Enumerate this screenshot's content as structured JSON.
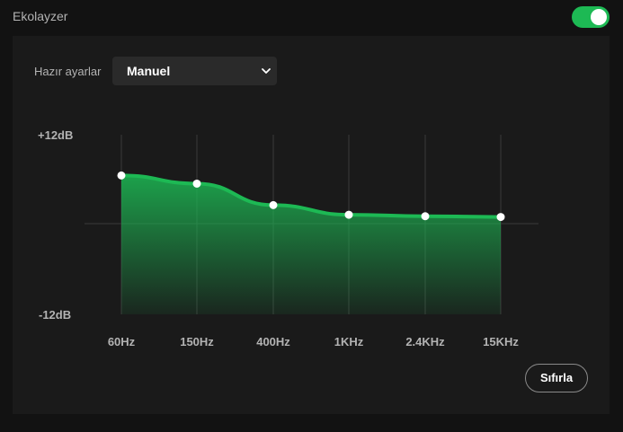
{
  "header": {
    "title": "Ekolayzer",
    "toggle": {
      "state": "on",
      "accent_color": "#1db954"
    }
  },
  "preset": {
    "label": "Hazır ayarlar",
    "selected": "Manuel",
    "icon": "chevron-down-icon"
  },
  "chart_data": {
    "type": "area",
    "db_max_label": "+12dB",
    "db_min_label": "-12dB",
    "ylim": [
      -12,
      12
    ],
    "categories": [
      "60Hz",
      "150Hz",
      "400Hz",
      "1KHz",
      "2.4KHz",
      "15KHz"
    ],
    "values": [
      6.5,
      5.4,
      2.5,
      1.2,
      1.0,
      0.9
    ],
    "grid": true,
    "fill_color": "#1db954"
  },
  "reset_button": {
    "label": "Sıfırla"
  }
}
